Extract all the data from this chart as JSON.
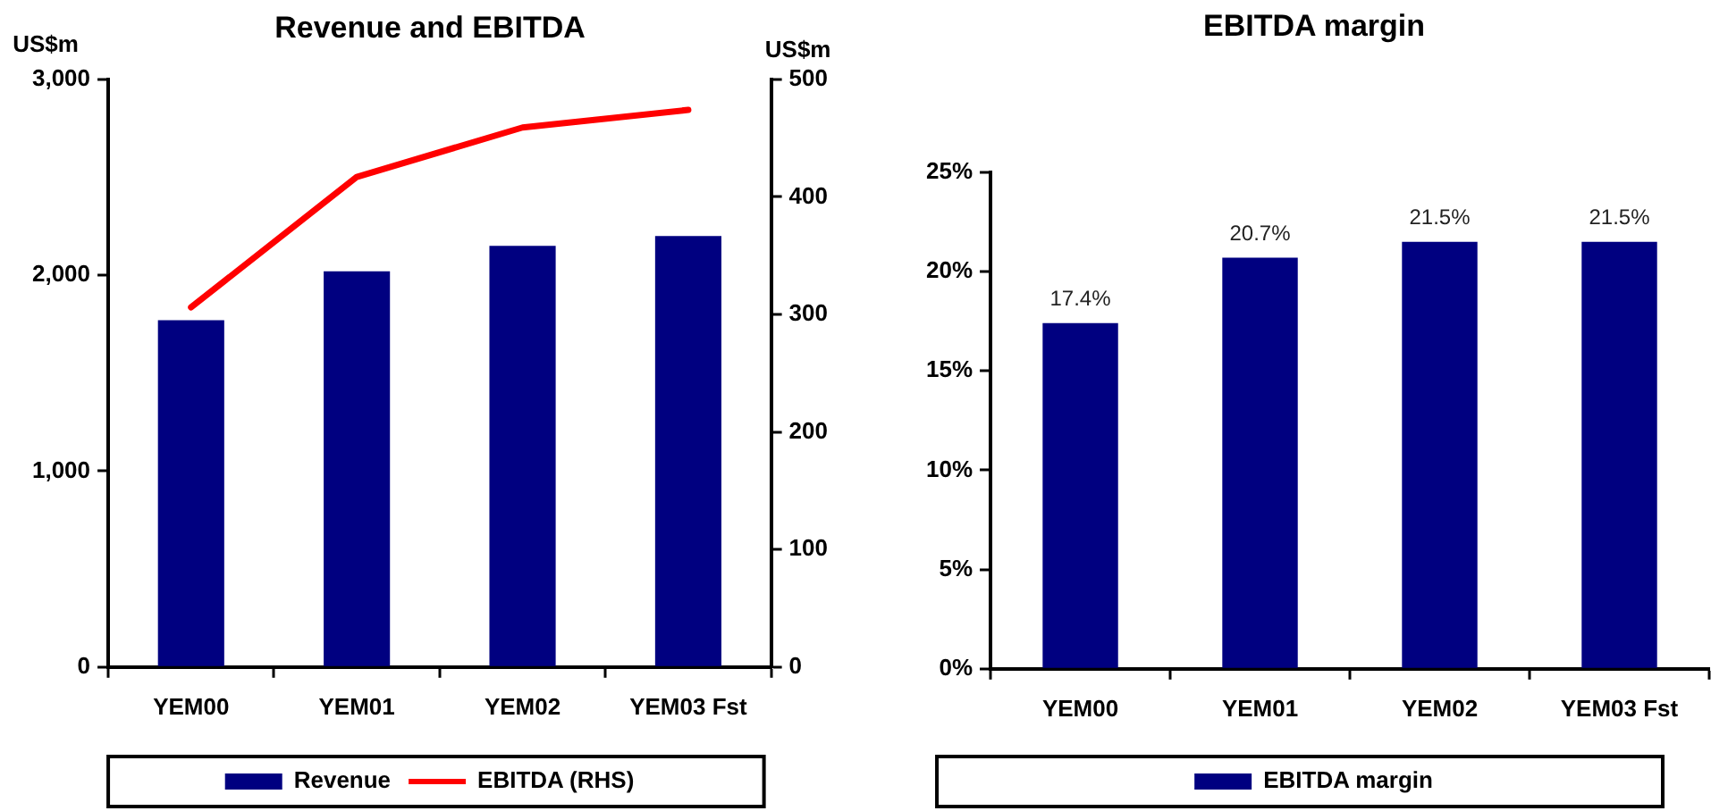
{
  "chart_data": [
    {
      "type": "bar",
      "title": "Revenue and EBITDA",
      "ylabel": "US$m",
      "y2label": "US$m",
      "categories": [
        "YEM00",
        "YEM01",
        "YEM02",
        "YEM03 Fst"
      ],
      "series": [
        {
          "name": "Revenue",
          "type": "bar",
          "color": "#000080",
          "values": [
            1770,
            2020,
            2150,
            2200
          ]
        },
        {
          "name": "EBITDA (RHS)",
          "type": "line",
          "axis": "y2",
          "color": "#ff0000",
          "values": [
            306,
            417,
            459,
            474
          ]
        }
      ],
      "ylim": [
        0,
        3000
      ],
      "yticks": [
        0,
        {
          "value": 1000,
          "label": "1,000"
        },
        {
          "value": 2000,
          "label": "2,000"
        },
        {
          "value": 3000,
          "label": "3,000"
        }
      ],
      "y2lim": [
        0,
        500
      ],
      "y2ticks": [
        0,
        100,
        200,
        300,
        400,
        500
      ],
      "legend": "bottom"
    },
    {
      "type": "bar",
      "title": "EBITDA margin",
      "categories": [
        "YEM00",
        "YEM01",
        "YEM02",
        "YEM03 Fst"
      ],
      "series": [
        {
          "name": "EBITDA margin",
          "color": "#000080",
          "values": [
            17.4,
            20.7,
            21.5,
            21.5
          ],
          "value_labels": [
            "17.4%",
            "20.7%",
            "21.5%",
            "21.5%"
          ]
        }
      ],
      "ylim": [
        0,
        25
      ],
      "yticks": [
        {
          "value": 0,
          "label": "0%"
        },
        {
          "value": 5,
          "label": "5%"
        },
        {
          "value": 10,
          "label": "10%"
        },
        {
          "value": 15,
          "label": "15%"
        },
        {
          "value": 20,
          "label": "20%"
        },
        {
          "value": 25,
          "label": "25%"
        }
      ],
      "legend": "bottom"
    }
  ]
}
